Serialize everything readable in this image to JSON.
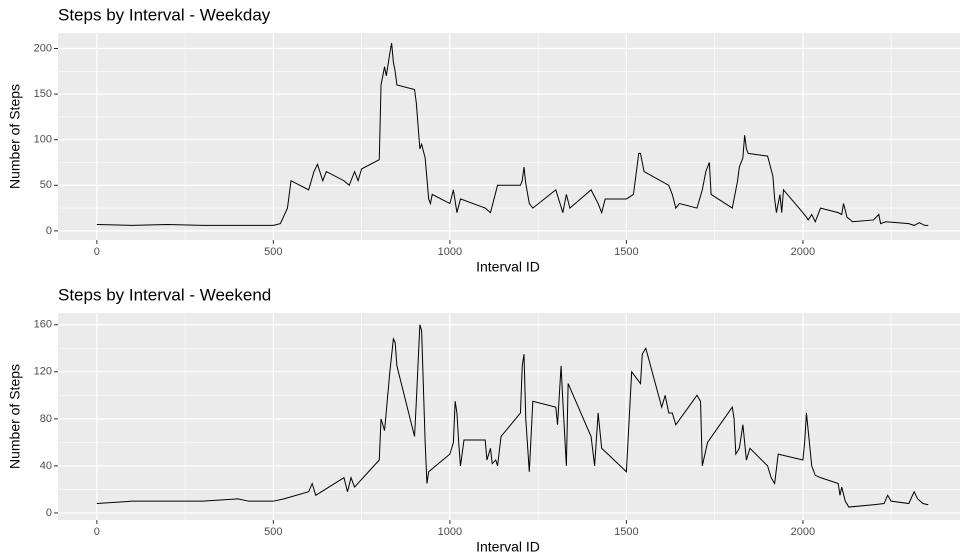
{
  "chart_data": [
    {
      "type": "line",
      "title": "Steps by Interval - Weekday",
      "x_label": "Interval ID",
      "y_label": "Number of Steps",
      "xlim": [
        -110,
        2445
      ],
      "ylim": [
        -10,
        217
      ],
      "xticks": [
        0,
        500,
        1000,
        1500,
        2000
      ],
      "yticks": [
        0,
        50,
        100,
        150,
        200
      ],
      "x_minor_ticks": [
        250,
        750,
        1250,
        1750,
        2250
      ],
      "y_minor_ticks": [
        25,
        75,
        125,
        175
      ],
      "grid": true,
      "series": [
        {
          "name": "Weekday",
          "color": "#000000",
          "x": [
            0,
            100,
            200,
            300,
            400,
            500,
            520,
            540,
            550,
            600,
            615,
            625,
            640,
            650,
            700,
            715,
            730,
            740,
            750,
            800,
            805,
            815,
            820,
            830,
            835,
            840,
            845,
            850,
            900,
            905,
            915,
            920,
            930,
            940,
            945,
            950,
            1000,
            1010,
            1020,
            1030,
            1100,
            1115,
            1125,
            1135,
            1200,
            1205,
            1210,
            1215,
            1225,
            1235,
            1300,
            1320,
            1330,
            1340,
            1400,
            1420,
            1430,
            1440,
            1500,
            1520,
            1525,
            1535,
            1540,
            1550,
            1620,
            1630,
            1640,
            1650,
            1700,
            1715,
            1725,
            1735,
            1740,
            1800,
            1815,
            1820,
            1830,
            1835,
            1840,
            1845,
            1900,
            1915,
            1920,
            1925,
            1935,
            1940,
            1945,
            2000,
            2010,
            2015,
            2025,
            2035,
            2050,
            2100,
            2110,
            2115,
            2125,
            2135,
            2140,
            2200,
            2215,
            2220,
            2235,
            2300,
            2315,
            2330,
            2345,
            2355
          ],
          "values": [
            7,
            6,
            7,
            6,
            6,
            6,
            8,
            25,
            55,
            45,
            65,
            73,
            55,
            65,
            55,
            50,
            65,
            55,
            68,
            78,
            160,
            180,
            170,
            195,
            206,
            185,
            175,
            160,
            155,
            140,
            90,
            95,
            80,
            35,
            30,
            40,
            30,
            45,
            20,
            35,
            25,
            20,
            35,
            50,
            50,
            55,
            70,
            52,
            30,
            25,
            45,
            20,
            40,
            25,
            45,
            30,
            20,
            35,
            35,
            40,
            55,
            85,
            85,
            65,
            50,
            40,
            25,
            30,
            25,
            45,
            65,
            75,
            40,
            25,
            55,
            70,
            80,
            105,
            90,
            85,
            82,
            60,
            35,
            20,
            40,
            20,
            45,
            20,
            15,
            12,
            18,
            10,
            25,
            20,
            18,
            30,
            15,
            12,
            10,
            12,
            18,
            8,
            10,
            8,
            6,
            9,
            6,
            6
          ]
        }
      ]
    },
    {
      "type": "line",
      "title": "Steps by Interval - Weekend",
      "x_label": "Interval ID",
      "y_label": "Number of Steps",
      "xlim": [
        -110,
        2445
      ],
      "ylim": [
        -6,
        170
      ],
      "xticks": [
        0,
        500,
        1000,
        1500,
        2000
      ],
      "yticks": [
        0,
        40,
        80,
        120,
        160
      ],
      "x_minor_ticks": [
        250,
        750,
        1250,
        1750,
        2250
      ],
      "y_minor_ticks": [
        20,
        60,
        100,
        140
      ],
      "grid": true,
      "series": [
        {
          "name": "Weekend",
          "color": "#000000",
          "x": [
            0,
            100,
            200,
            300,
            400,
            430,
            500,
            530,
            600,
            610,
            620,
            700,
            710,
            720,
            730,
            800,
            805,
            815,
            830,
            840,
            845,
            850,
            900,
            905,
            915,
            920,
            930,
            935,
            940,
            1000,
            1010,
            1015,
            1020,
            1025,
            1030,
            1040,
            1100,
            1105,
            1115,
            1120,
            1130,
            1135,
            1145,
            1200,
            1205,
            1210,
            1215,
            1225,
            1235,
            1300,
            1305,
            1315,
            1320,
            1330,
            1335,
            1400,
            1410,
            1420,
            1430,
            1500,
            1515,
            1540,
            1545,
            1555,
            1600,
            1610,
            1620,
            1630,
            1640,
            1700,
            1710,
            1715,
            1730,
            1800,
            1805,
            1810,
            1820,
            1830,
            1840,
            1850,
            1900,
            1910,
            1920,
            1930,
            2000,
            2005,
            2010,
            2015,
            2025,
            2035,
            2050,
            2100,
            2105,
            2110,
            2120,
            2130,
            2200,
            2230,
            2240,
            2250,
            2300,
            2315,
            2325,
            2340,
            2355
          ],
          "values": [
            8,
            10,
            10,
            10,
            12,
            10,
            10,
            12,
            18,
            25,
            15,
            30,
            18,
            30,
            22,
            45,
            80,
            70,
            120,
            148,
            145,
            125,
            65,
            95,
            160,
            155,
            60,
            25,
            35,
            50,
            60,
            95,
            85,
            60,
            40,
            62,
            62,
            45,
            55,
            42,
            45,
            40,
            65,
            85,
            125,
            135,
            80,
            35,
            95,
            90,
            75,
            125,
            95,
            40,
            110,
            65,
            40,
            85,
            55,
            35,
            120,
            110,
            135,
            140,
            90,
            100,
            85,
            85,
            75,
            100,
            95,
            40,
            60,
            90,
            80,
            50,
            55,
            75,
            45,
            55,
            40,
            30,
            25,
            50,
            45,
            60,
            85,
            70,
            40,
            32,
            30,
            25,
            15,
            22,
            10,
            5,
            7,
            8,
            15,
            10,
            8,
            18,
            12,
            8,
            7
          ]
        }
      ]
    }
  ]
}
